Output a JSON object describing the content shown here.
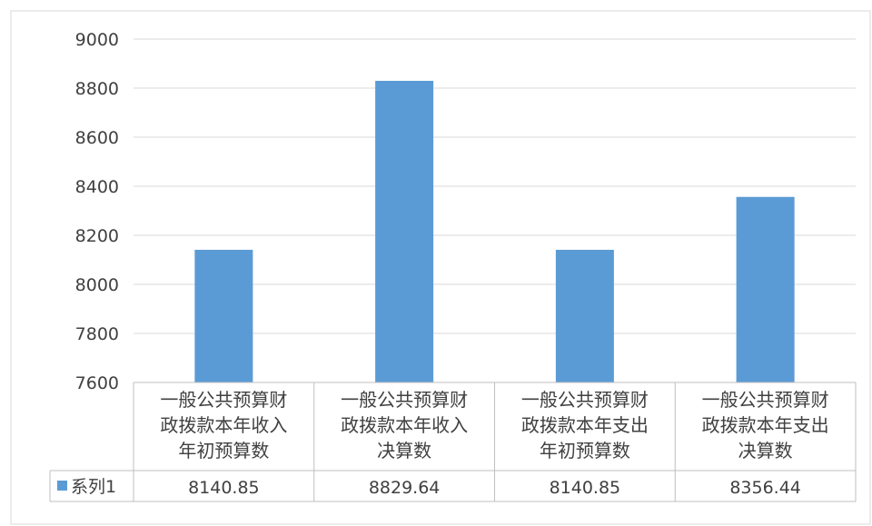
{
  "chart_data": {
    "type": "bar",
    "categories": [
      [
        "一般公共预算财",
        "政拨款本年收入",
        "年初预算数"
      ],
      [
        "一般公共预算财",
        "政拨款本年收入",
        "决算数"
      ],
      [
        "一般公共预算财",
        "政拨款本年支出",
        "年初预算数"
      ],
      [
        "一般公共预算财",
        "政拨款本年支出",
        "决算数"
      ]
    ],
    "series": [
      {
        "name": "系列1",
        "values": [
          8140.85,
          8829.64,
          8140.85,
          8356.44
        ]
      }
    ],
    "value_labels": [
      "8140.85",
      "8829.64",
      "8140.85",
      "8356.44"
    ],
    "ylim": [
      7600,
      9000
    ],
    "yticks": [
      7600,
      7800,
      8000,
      8200,
      8400,
      8600,
      8800,
      9000
    ],
    "grid": true,
    "data_table": true,
    "colors": {
      "bar": "#5b9bd5",
      "grid": "#d9d9d9",
      "border": "#bfbfbf",
      "text": "#404040"
    }
  }
}
